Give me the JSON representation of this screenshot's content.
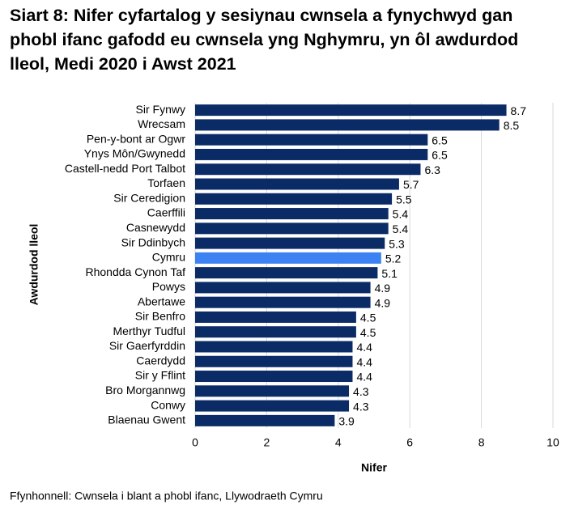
{
  "chart_data": {
    "type": "bar",
    "orientation": "horizontal",
    "title": "Siart 8: Nifer cyfartalog y sesiynau cwnsela a fynychwyd gan phobl ifanc gafodd eu cwnsela yng Nghymru, yn ôl awdurdod lleol, Medi 2020 i Awst 2021",
    "x_label": "Nifer",
    "y_label": "Awdurdod lleol",
    "source": "Ffynhonnell: Cwnsela i blant a phobl ifanc, Llywodraeth Cymru",
    "categories": [
      "Sir Fynwy",
      "Wrecsam",
      "Pen-y-bont ar Ogwr",
      "Ynys Môn/Gwynedd",
      "Castell-nedd Port Talbot",
      "Torfaen",
      "Sir Ceredigion",
      "Caerffili",
      "Casnewydd",
      "Sir Ddinbych",
      "Cymru",
      "Rhondda Cynon Taf",
      "Powys",
      "Abertawe",
      "Sir Benfro",
      "Merthyr Tudful",
      "Sir Gaerfyrddin",
      "Caerdydd",
      "Sir y Fflint",
      "Bro Morgannwg",
      "Conwy",
      "Blaenau Gwent"
    ],
    "values": [
      8.7,
      8.5,
      6.5,
      6.5,
      6.3,
      5.7,
      5.5,
      5.4,
      5.4,
      5.3,
      5.2,
      5.1,
      4.9,
      4.9,
      4.5,
      4.5,
      4.4,
      4.4,
      4.4,
      4.3,
      4.3,
      3.9
    ],
    "colors": [
      "#0b2b66",
      "#0b2b66",
      "#0b2b66",
      "#0b2b66",
      "#0b2b66",
      "#0b2b66",
      "#0b2b66",
      "#0b2b66",
      "#0b2b66",
      "#0b2b66",
      "#3c82f2",
      "#0b2b66",
      "#0b2b66",
      "#0b2b66",
      "#0b2b66",
      "#0b2b66",
      "#0b2b66",
      "#0b2b66",
      "#0b2b66",
      "#0b2b66",
      "#0b2b66",
      "#0b2b66"
    ],
    "xlim": [
      0,
      10
    ],
    "xticks": [
      0,
      2,
      4,
      6,
      8,
      10
    ],
    "grid": true
  }
}
